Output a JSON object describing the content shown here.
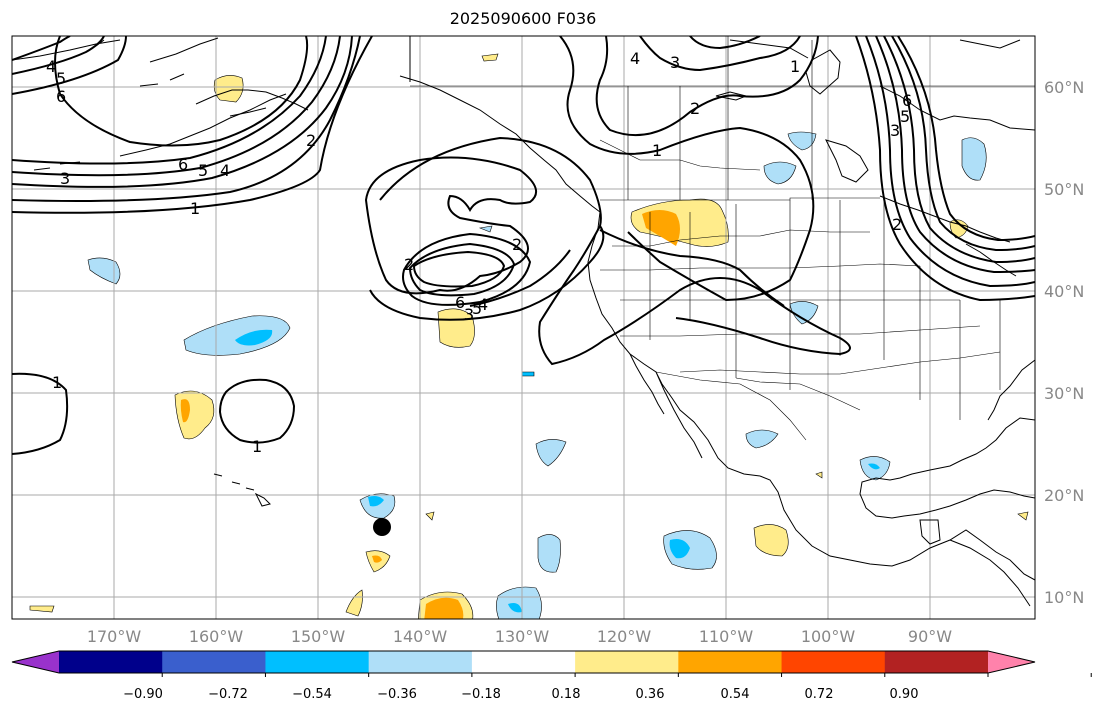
{
  "title": "2025090600 F036",
  "map": {
    "latitude_labels": [
      "60°N",
      "50°N",
      "40°N",
      "30°N",
      "20°N",
      "10°N"
    ],
    "longitude_labels": [
      "170°W",
      "160°W",
      "150°W",
      "140°W",
      "130°W",
      "120°W",
      "110°W",
      "100°W",
      "90°W"
    ],
    "contour_labels": [
      "4",
      "5",
      "6",
      "6",
      "5",
      "4",
      "3",
      "1",
      "2",
      "6",
      "5",
      "4",
      "3",
      "2",
      "1",
      "1",
      "1",
      "2",
      "4",
      "3",
      "1",
      "6",
      "5",
      "3",
      "2",
      "2"
    ]
  },
  "colorbar": {
    "colors": [
      "#9932cc",
      "#00008b",
      "#3a5fcd",
      "#00bfff",
      "#afdff8",
      "#ffffff",
      "#ffec8b",
      "#ffa500",
      "#ff4500",
      "#b22222",
      "#ff82ab"
    ],
    "tick_labels": [
      "−0.90",
      "−0.72",
      "−0.54",
      "−0.36",
      "−0.18",
      "0.18",
      "0.36",
      "0.54",
      "0.72",
      "0.90"
    ]
  }
}
